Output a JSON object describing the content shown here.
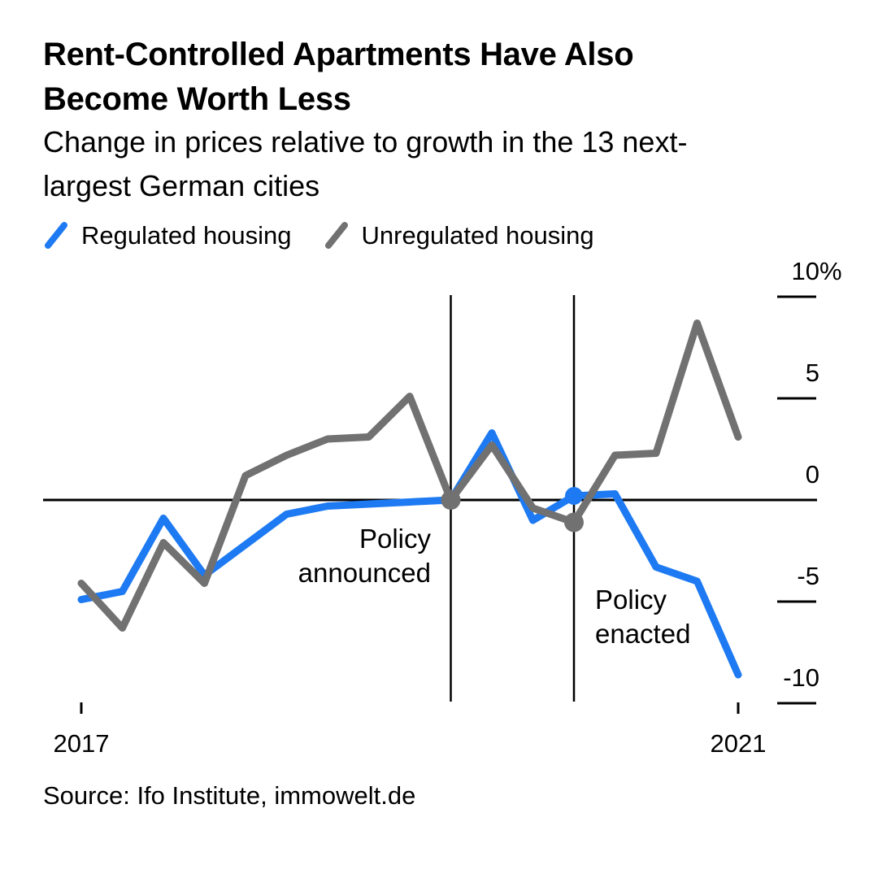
{
  "header": {
    "title_line1": "Rent-Controlled Apartments Have Also",
    "title_line2": "Become Worth Less",
    "subtitle_line1": "Change in prices relative to growth in the 13 next-",
    "subtitle_line2": "largest German cities"
  },
  "legend": {
    "items": [
      {
        "label": "Regulated housing",
        "color": "#1e7af2"
      },
      {
        "label": "Unregulated housing",
        "color": "#717171"
      }
    ]
  },
  "chart_data": {
    "type": "line",
    "title": "Rent-Controlled Apartments Have Also Become Worth Less",
    "subtitle": "Change in prices relative to growth in the 13 next-largest German cities",
    "x_unit": "quarter",
    "categories": [
      "2017-Q1",
      "2017-Q2",
      "2017-Q3",
      "2017-Q4",
      "2018-Q1",
      "2018-Q2",
      "2018-Q3",
      "2018-Q4",
      "2019-Q1",
      "2019-Q2",
      "2019-Q3",
      "2019-Q4",
      "2020-Q1",
      "2020-Q2",
      "2020-Q3",
      "2020-Q4",
      "2021-Q1"
    ],
    "series": [
      {
        "name": "Regulated housing",
        "color": "#1e7af2",
        "values": [
          -4.9,
          -4.5,
          -0.9,
          -3.7,
          -2.2,
          -0.7,
          -0.3,
          -0.2,
          -0.1,
          0,
          3.3,
          -1.0,
          0.2,
          0.3,
          -3.3,
          -4.0,
          -8.6
        ]
      },
      {
        "name": "Unregulated housing",
        "color": "#717171",
        "values": [
          -4.1,
          -6.3,
          -2.1,
          -4.1,
          1.2,
          2.2,
          3.0,
          3.1,
          5.1,
          0,
          2.7,
          -0.4,
          -1.1,
          2.2,
          2.3,
          8.7,
          3.1
        ]
      }
    ],
    "y_axis": {
      "unit": "%",
      "range": [
        -10,
        10
      ],
      "ticks": [
        {
          "value": 10,
          "label": "10",
          "suffix": "%"
        },
        {
          "value": 5,
          "label": "5"
        },
        {
          "value": 0,
          "label": "0"
        },
        {
          "value": -5,
          "label": "-5"
        },
        {
          "value": -10,
          "label": "-10"
        }
      ],
      "grid": false
    },
    "x_axis": {
      "ticks": [
        {
          "index": 0,
          "label": "2017"
        },
        {
          "index": 16,
          "label": "2021"
        }
      ]
    },
    "annotations": [
      {
        "id": "policy-announced",
        "index": 9,
        "line1": "Policy",
        "line2": "announced",
        "align": "right",
        "dots": [
          {
            "series": 1,
            "value": 0
          }
        ]
      },
      {
        "id": "policy-enacted",
        "index": 12,
        "line1": "Policy",
        "line2": "enacted",
        "align": "left",
        "dots": [
          {
            "series": 0,
            "value": 0.2
          },
          {
            "series": 1,
            "value": -1.1
          }
        ]
      }
    ],
    "legend_position": "top"
  },
  "source": {
    "text": "Source: Ifo Institute, immowelt.de"
  }
}
